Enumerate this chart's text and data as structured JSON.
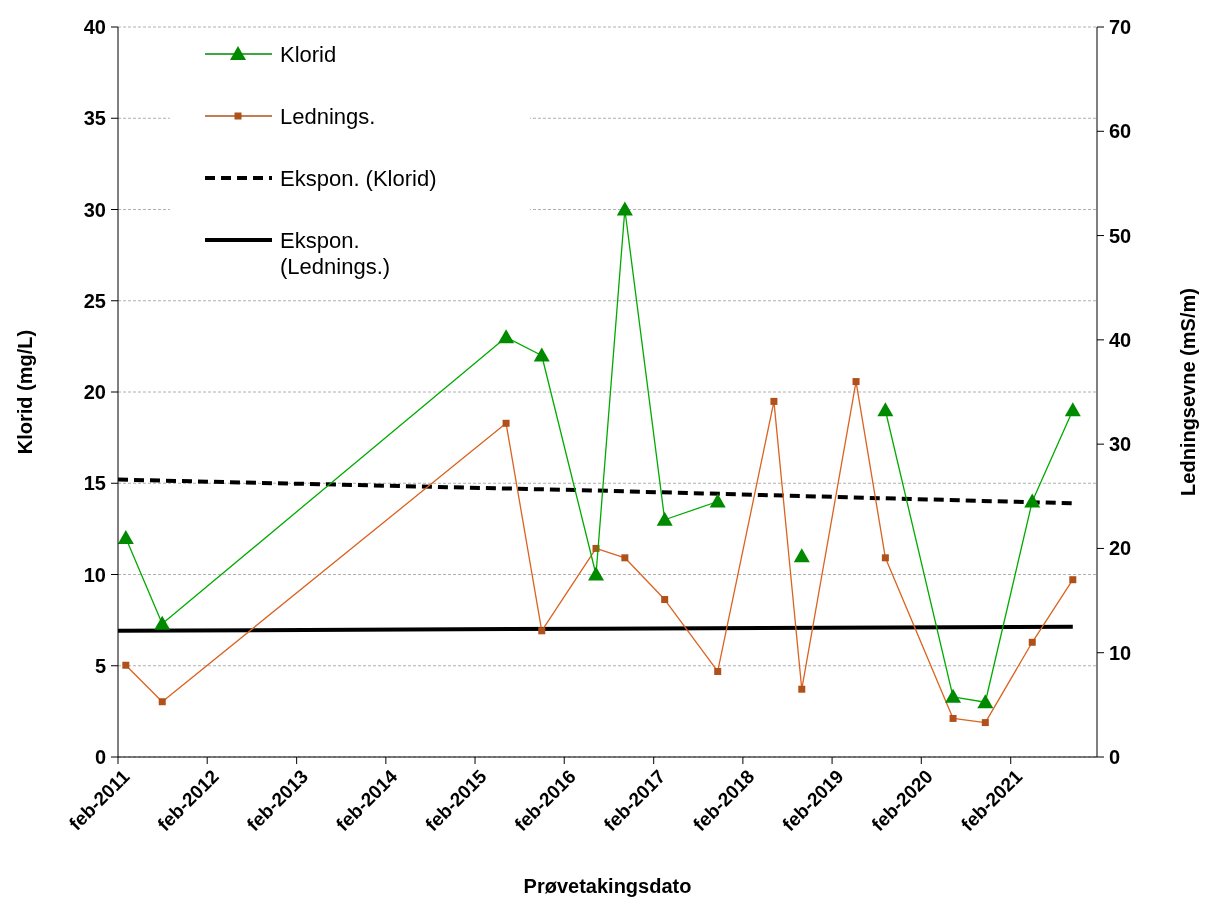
{
  "chart_data": {
    "type": "line",
    "xlabel": "Prøvetakingsdato",
    "ylabel": "Klorid  (mg/L)",
    "y2label": "Ledningsevne (mS/m)",
    "xlim": [
      "2011-02-01",
      "2022-01-20"
    ],
    "xticks": [
      {
        "value": "2011-02",
        "label": "feb-2011"
      },
      {
        "value": "2012-02",
        "label": "feb-2012"
      },
      {
        "value": "2013-02",
        "label": "feb-2013"
      },
      {
        "value": "2014-02",
        "label": "feb-2014"
      },
      {
        "value": "2015-02",
        "label": "feb-2015"
      },
      {
        "value": "2016-02",
        "label": "feb-2016"
      },
      {
        "value": "2017-02",
        "label": "feb-2017"
      },
      {
        "value": "2018-02",
        "label": "feb-2018"
      },
      {
        "value": "2019-02",
        "label": "feb-2019"
      },
      {
        "value": "2020-02",
        "label": "feb-2020"
      },
      {
        "value": "2021-02",
        "label": "feb-2021"
      }
    ],
    "ylim": [
      0,
      40
    ],
    "yticks": [
      0,
      5,
      10,
      15,
      20,
      25,
      30,
      35,
      40
    ],
    "y2lim": [
      0,
      70
    ],
    "y2ticks": [
      0,
      10,
      20,
      30,
      40,
      50,
      60,
      70
    ],
    "grid": "y",
    "legend": "top left",
    "x": [
      "2011-03-05",
      "2011-08-01",
      "2015-06-08",
      "2015-11-01",
      "2016-06-10",
      "2016-10-06",
      "2017-03-18",
      "2017-10-21",
      "2018-06-08",
      "2018-09-30",
      "2019-05-10",
      "2019-09-07",
      "2020-06-10",
      "2020-10-20",
      "2021-04-30",
      "2021-10-13"
    ],
    "series": [
      {
        "name": "Klorid",
        "color": "#008a00",
        "marker": "triangle",
        "values": [
          12,
          7.3,
          23,
          22,
          10,
          30,
          13,
          14,
          null,
          11,
          null,
          19,
          3.3,
          3.0,
          14,
          19
        ]
      },
      {
        "name": "Lednings.",
        "color": "#b0501a",
        "marker": "square",
        "axis": "y2",
        "values": [
          8.8,
          5.3,
          32,
          12.1,
          20,
          19.1,
          15.1,
          8.2,
          34.1,
          6.5,
          36,
          19.1,
          3.7,
          3.3,
          11,
          17
        ]
      },
      {
        "name": "Ekspon. (Klorid)",
        "color": "#000000",
        "marker": "none",
        "line_style": "dashed",
        "x": [
          "2011-02-01",
          "2016-06-10",
          "2021-10-13"
        ],
        "values": [
          15.2,
          14.6,
          13.9
        ]
      },
      {
        "name": "Ekspon. (Lednings.)",
        "color": "#000000",
        "marker": "none",
        "line_style": "solid",
        "axis": "y2",
        "x": [
          "2011-02-01",
          "2016-06-10",
          "2021-10-13"
        ],
        "values": [
          12.1,
          12.3,
          12.5
        ]
      }
    ]
  }
}
